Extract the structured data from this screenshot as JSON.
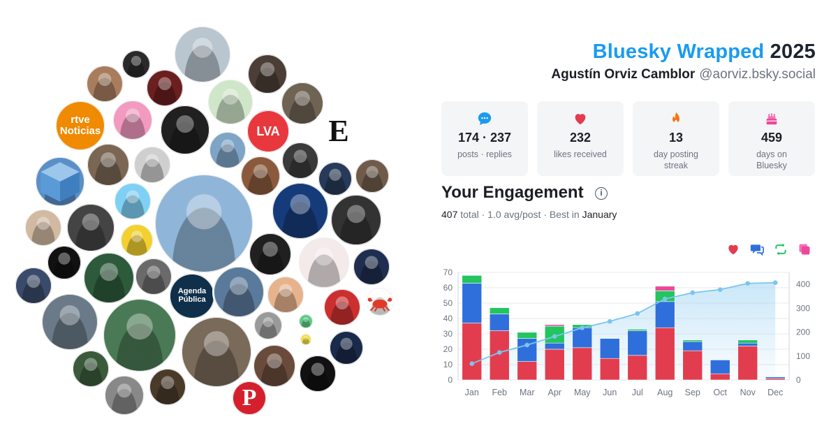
{
  "header": {
    "title_brand": "Bluesky Wrapped",
    "title_year": "2025",
    "user_name": "Agustín Orviz Camblor",
    "user_handle": "@aorviz.bsky.social"
  },
  "stats": [
    {
      "icon": "speech-bubble-icon",
      "value": "174 · 237",
      "label": "posts · replies",
      "color": "#1a9bf0"
    },
    {
      "icon": "heart-icon",
      "value": "232",
      "label": "likes received",
      "color": "#e23d4f"
    },
    {
      "icon": "flame-icon",
      "value": "13",
      "label": "day posting streak",
      "color": "#f97316"
    },
    {
      "icon": "cake-icon",
      "value": "459",
      "label": "days on Bluesky",
      "color": "#ec4899"
    }
  ],
  "engagement": {
    "title": "Your Engagement",
    "summary_total": "407",
    "summary_total_label": "total",
    "summary_avg": "1.0 avg/post",
    "summary_best_prefix": "Best in",
    "summary_best": "January"
  },
  "legend": [
    {
      "icon": "heart-icon",
      "color": "#e23d4f"
    },
    {
      "icon": "reply-icon",
      "color": "#2f6fdc"
    },
    {
      "icon": "repost-icon",
      "color": "#22c55e"
    },
    {
      "icon": "quote-icon",
      "color": "#ec4899"
    }
  ],
  "avatars": [
    {
      "label": "rtve Noticias",
      "color": "#f08a00"
    },
    {
      "label": "LVA",
      "color": "#e8383d"
    },
    {
      "label": "E",
      "color": "#ffffff"
    },
    {
      "label": "Agenda Pública",
      "color": "#0f2f4a"
    },
    {
      "label": "P",
      "color": "#d4202c"
    }
  ],
  "chart_data": {
    "type": "bar",
    "categories": [
      "Jan",
      "Feb",
      "Mar",
      "Apr",
      "May",
      "Jun",
      "Jul",
      "Aug",
      "Sep",
      "Oct",
      "Nov",
      "Dec"
    ],
    "series": [
      {
        "color": "#e23d4f",
        "values": [
          37,
          32,
          12,
          20,
          21,
          14,
          16,
          34,
          19,
          4,
          22,
          1
        ]
      },
      {
        "color": "#2f6fdc",
        "values": [
          26,
          11,
          15,
          4,
          13,
          13,
          16,
          17,
          6,
          9,
          2,
          1
        ]
      },
      {
        "color": "#22c55e",
        "values": [
          5,
          4,
          4,
          11,
          2,
          0,
          1,
          7,
          1,
          0,
          2,
          0
        ]
      },
      {
        "color": "#ec4899",
        "values": [
          0,
          0,
          0,
          1,
          0,
          0,
          0,
          3,
          0,
          0,
          0,
          0
        ]
      }
    ],
    "cumulative": {
      "color": "#7cc4ee",
      "values": [
        68,
        115,
        146,
        182,
        218,
        245,
        278,
        339,
        365,
        378,
        404,
        407
      ]
    },
    "ylim": [
      0,
      70
    ],
    "y_ticks": [
      0,
      10,
      20,
      30,
      40,
      50,
      60,
      70
    ],
    "y2lim": [
      0,
      450
    ],
    "y2_ticks": [
      0,
      100,
      200,
      300,
      400
    ],
    "grid": true
  }
}
